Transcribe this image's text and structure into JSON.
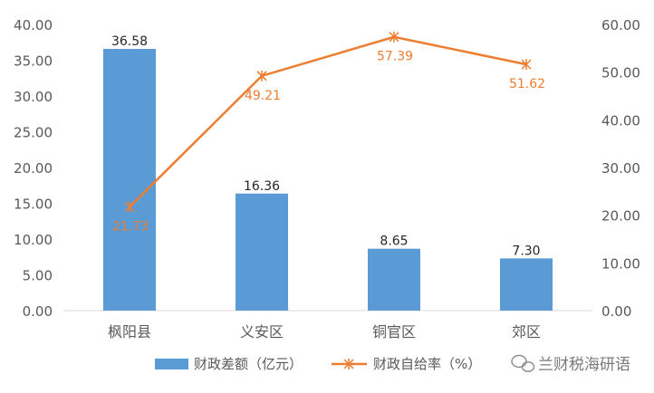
{
  "chart_data": {
    "type": "bar",
    "categories": [
      "枫阳县",
      "义安区",
      "铜官区",
      "郊区"
    ],
    "series": [
      {
        "name": "财政差额（亿元）",
        "type": "bar",
        "axis": "left",
        "values": [
          36.58,
          16.36,
          8.65,
          7.3
        ],
        "labels": [
          "36.58",
          "16.36",
          "8.65",
          "7.30"
        ]
      },
      {
        "name": "财政自给率（%）",
        "type": "line",
        "axis": "right",
        "values": [
          21.73,
          49.21,
          57.39,
          51.62
        ],
        "labels": [
          "21.73",
          "49.21",
          "57.39",
          "51.62"
        ]
      }
    ],
    "ylim_left": [
      0,
      40
    ],
    "ylim_right": [
      0,
      60
    ],
    "yticks_left": [
      "0.00",
      "5.00",
      "10.00",
      "15.00",
      "20.00",
      "25.00",
      "30.00",
      "35.00",
      "40.00"
    ],
    "yticks_right": [
      "0.00",
      "10.00",
      "20.00",
      "30.00",
      "40.00",
      "50.00",
      "60.00"
    ],
    "grid": false,
    "legend": "bottom",
    "colors": {
      "bar": "#5b9bd5",
      "line": "#ed7d31"
    }
  },
  "watermark": {
    "text": "兰财税海研语"
  }
}
